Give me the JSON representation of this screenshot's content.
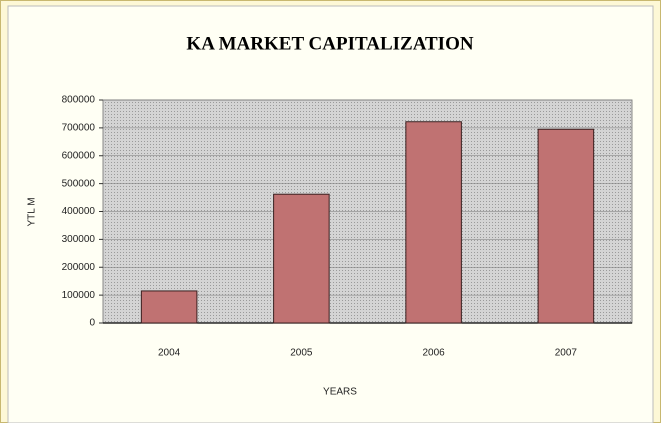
{
  "chart_data": {
    "type": "bar",
    "title": "KA MARKET CAPITALIZATION",
    "x_label": "YEARS",
    "y_label": "YTL M",
    "categories": [
      "2004",
      "2005",
      "2006",
      "2007"
    ],
    "values": [
      115000,
      462000,
      722000,
      695000
    ],
    "color": "#c07272",
    "ylim": [
      0,
      800000
    ],
    "yticks": [
      0,
      100000,
      200000,
      300000,
      400000,
      500000,
      600000,
      700000,
      800000
    ],
    "grid": true
  }
}
